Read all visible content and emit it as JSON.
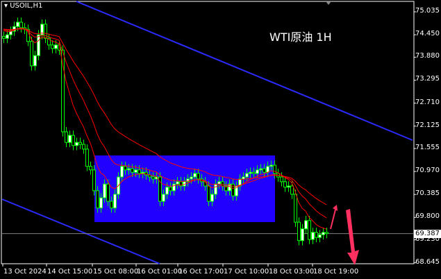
{
  "symbol_label": "USOIL,H1",
  "annotation": "WTI原油 1H",
  "chart_data": {
    "type": "candlestick",
    "symbol": "USOIL",
    "timeframe": "H1",
    "price_ticks": [
      "75.035",
      "74.450",
      "73.880",
      "73.295",
      "72.710",
      "72.125",
      "71.555",
      "70.970",
      "70.385",
      "69.800",
      "69.230",
      "68.645"
    ],
    "ylim": [
      68.645,
      75.035
    ],
    "time_ticks": [
      "13 Oct 2024",
      "14 Oct 15:00",
      "15 Oct 08:00",
      "16 Oct 01:00",
      "16 Oct 17:00",
      "17 Oct 10:00",
      "18 Oct 03:00",
      "18 Oct 19:00"
    ],
    "current_price": "69.387",
    "closes": [
      74.36,
      74.45,
      74.54,
      74.66,
      74.77,
      74.63,
      74.59,
      74.28,
      73.66,
      73.92,
      74.45,
      74.72,
      74.36,
      74.19,
      74.1,
      74.19,
      74.06,
      71.98,
      71.71,
      71.89,
      71.63,
      71.71,
      71.66,
      71.54,
      71.1,
      71.01,
      70.48,
      70.04,
      70.3,
      70.65,
      70.21,
      70.04,
      70.39,
      70.83,
      71.1,
      71.01,
      71.04,
      70.95,
      71.01,
      70.92,
      70.95,
      70.88,
      70.83,
      70.78,
      70.83,
      70.21,
      70.39,
      70.57,
      70.48,
      70.65,
      70.71,
      70.6,
      70.71,
      70.78,
      70.83,
      70.92,
      70.78,
      70.71,
      70.6,
      70.21,
      70.39,
      70.65,
      70.71,
      70.6,
      70.48,
      70.65,
      70.35,
      70.6,
      70.78,
      70.83,
      70.92,
      70.95,
      70.92,
      71.01,
      71.04,
      70.95,
      71.1,
      71.13,
      70.92,
      70.83,
      70.71,
      70.57,
      70.6,
      70.39,
      69.68,
      69.21,
      69.51,
      69.72,
      69.24,
      69.42,
      69.29,
      69.36,
      69.42,
      69.39
    ],
    "moving_averages": 3,
    "colors": {
      "candle": "#00ff00",
      "ma": "#ff0000",
      "channel": "#2a2aff",
      "range_box": "#2200ff",
      "arrow": "#ff3060",
      "price_line": "#808080"
    }
  }
}
